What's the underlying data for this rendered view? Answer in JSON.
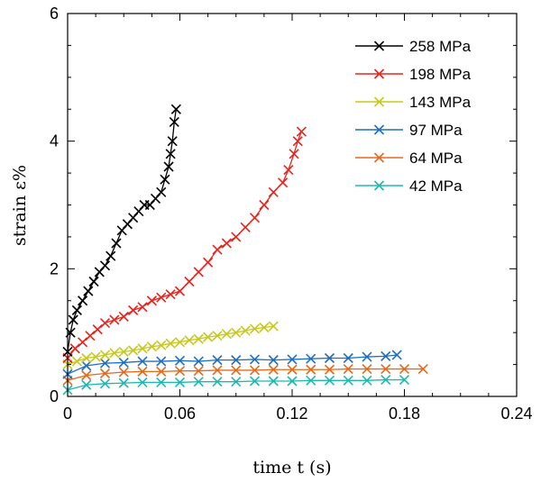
{
  "chart_data": {
    "type": "line",
    "xlabel": "time t (s)",
    "ylabel": "strain ε%",
    "xlim": [
      0,
      0.24
    ],
    "ylim": [
      0,
      6
    ],
    "xticks": [
      "0",
      "0.06",
      "0.12",
      "0.18",
      "0.24"
    ],
    "yticks": [
      "0",
      "2",
      "4",
      "6"
    ],
    "legend_position": "top-right",
    "marker": "x",
    "series": [
      {
        "name": "258 MPa",
        "color": "#000000",
        "x": [
          0,
          0.0015,
          0.003,
          0.005,
          0.008,
          0.011,
          0.014,
          0.017,
          0.02,
          0.023,
          0.026,
          0.029,
          0.032,
          0.035,
          0.038,
          0.041,
          0.044,
          0.047,
          0.05,
          0.052,
          0.054,
          0.055,
          0.056,
          0.057,
          0.058
        ],
        "y": [
          0.7,
          1.0,
          1.2,
          1.35,
          1.5,
          1.65,
          1.8,
          1.95,
          2.05,
          2.2,
          2.4,
          2.6,
          2.7,
          2.8,
          2.9,
          3.0,
          3.0,
          3.1,
          3.2,
          3.4,
          3.6,
          3.8,
          4.0,
          4.3,
          4.5
        ]
      },
      {
        "name": "198 MPa",
        "color": "#e8231c",
        "x": [
          0,
          0.004,
          0.008,
          0.012,
          0.016,
          0.02,
          0.025,
          0.03,
          0.035,
          0.04,
          0.045,
          0.05,
          0.055,
          0.06,
          0.065,
          0.07,
          0.075,
          0.08,
          0.085,
          0.09,
          0.095,
          0.1,
          0.105,
          0.11,
          0.115,
          0.118,
          0.121,
          0.123,
          0.125
        ],
        "y": [
          0.6,
          0.75,
          0.85,
          0.95,
          1.05,
          1.15,
          1.2,
          1.25,
          1.35,
          1.4,
          1.5,
          1.55,
          1.6,
          1.65,
          1.8,
          1.95,
          2.1,
          2.3,
          2.4,
          2.5,
          2.65,
          2.8,
          3.0,
          3.2,
          3.35,
          3.55,
          3.8,
          4.0,
          4.15
        ]
      },
      {
        "name": "143 MPa",
        "color": "#c6c81c",
        "x": [
          0,
          0.005,
          0.01,
          0.015,
          0.02,
          0.025,
          0.03,
          0.035,
          0.04,
          0.045,
          0.05,
          0.055,
          0.06,
          0.065,
          0.07,
          0.075,
          0.08,
          0.085,
          0.09,
          0.095,
          0.1,
          0.105,
          0.11
        ],
        "y": [
          0.5,
          0.55,
          0.6,
          0.62,
          0.65,
          0.68,
          0.7,
          0.72,
          0.75,
          0.78,
          0.8,
          0.83,
          0.85,
          0.88,
          0.9,
          0.93,
          0.95,
          0.98,
          1.0,
          1.03,
          1.06,
          1.08,
          1.1
        ]
      },
      {
        "name": "97 MPa",
        "color": "#1f6fc0",
        "x": [
          0,
          0.01,
          0.02,
          0.03,
          0.04,
          0.05,
          0.06,
          0.07,
          0.08,
          0.09,
          0.1,
          0.11,
          0.12,
          0.13,
          0.14,
          0.15,
          0.16,
          0.17,
          0.176
        ],
        "y": [
          0.35,
          0.48,
          0.52,
          0.53,
          0.55,
          0.55,
          0.56,
          0.55,
          0.57,
          0.57,
          0.58,
          0.57,
          0.58,
          0.59,
          0.6,
          0.6,
          0.62,
          0.63,
          0.65
        ]
      },
      {
        "name": "64 MPa",
        "color": "#e36a1d",
        "x": [
          0,
          0.01,
          0.02,
          0.03,
          0.04,
          0.05,
          0.06,
          0.07,
          0.08,
          0.09,
          0.1,
          0.11,
          0.12,
          0.13,
          0.14,
          0.15,
          0.16,
          0.17,
          0.18,
          0.19
        ],
        "y": [
          0.25,
          0.33,
          0.36,
          0.38,
          0.39,
          0.39,
          0.4,
          0.4,
          0.41,
          0.41,
          0.41,
          0.42,
          0.42,
          0.42,
          0.42,
          0.43,
          0.43,
          0.43,
          0.43,
          0.43
        ]
      },
      {
        "name": "42 MPa",
        "color": "#1fb8b0",
        "x": [
          0,
          0.01,
          0.02,
          0.03,
          0.04,
          0.05,
          0.06,
          0.07,
          0.08,
          0.09,
          0.1,
          0.11,
          0.12,
          0.13,
          0.14,
          0.15,
          0.16,
          0.17,
          0.18
        ],
        "y": [
          0.1,
          0.18,
          0.2,
          0.21,
          0.22,
          0.22,
          0.22,
          0.23,
          0.23,
          0.23,
          0.24,
          0.24,
          0.24,
          0.25,
          0.25,
          0.25,
          0.25,
          0.26,
          0.26
        ]
      }
    ]
  }
}
